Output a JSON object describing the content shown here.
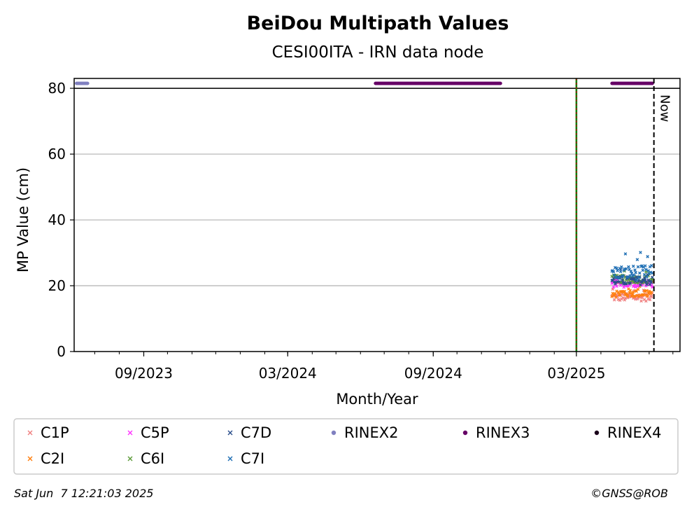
{
  "chart_data": {
    "type": "scatter",
    "title": "BeiDou Multipath Values",
    "subtitle": "CESI00ITA - IRN data node",
    "xlabel": "Month/Year",
    "ylabel": "MP Value (cm)",
    "ylim": [
      0,
      83
    ],
    "xlim": [
      "2023-06-05",
      "2025-07-10"
    ],
    "x_ticks": [
      {
        "date": "2023-09-01",
        "label": "09/2023"
      },
      {
        "date": "2024-03-01",
        "label": "03/2024"
      },
      {
        "date": "2024-09-01",
        "label": "09/2024"
      },
      {
        "date": "2025-03-01",
        "label": "03/2025"
      }
    ],
    "y_ticks": [
      0,
      20,
      40,
      60,
      80
    ],
    "grid": "horizontal",
    "now_label": "Now",
    "now_date": "2025-06-07",
    "vline_date": "2025-03-01",
    "series": [
      {
        "name": "C1P",
        "color": "#f08080",
        "marker": "x",
        "x_range": [
          "2025-04-15",
          "2025-06-05"
        ],
        "mean": 16.5,
        "spread": 1.2
      },
      {
        "name": "C2I",
        "color": "#ff7f0e",
        "marker": "x",
        "x_range": [
          "2025-04-15",
          "2025-06-05"
        ],
        "mean": 17.8,
        "spread": 1.3
      },
      {
        "name": "C5P",
        "color": "#ff33ff",
        "marker": "x",
        "x_range": [
          "2025-04-15",
          "2025-06-05"
        ],
        "mean": 20.5,
        "spread": 1.0
      },
      {
        "name": "C6I",
        "color": "#5d9b3a",
        "marker": "x",
        "x_range": [
          "2025-04-15",
          "2025-06-05"
        ],
        "mean": 22.0,
        "spread": 1.2
      },
      {
        "name": "C7D",
        "color": "#2b4f8c",
        "marker": "x",
        "x_range": [
          "2025-04-15",
          "2025-06-05"
        ],
        "mean": 21.5,
        "spread": 1.3
      },
      {
        "name": "C7I",
        "color": "#1f6fb4",
        "marker": "x",
        "x_range": [
          "2025-04-15",
          "2025-06-05"
        ],
        "mean": 24.0,
        "spread": 2.2
      }
    ],
    "rinex_series": [
      {
        "name": "RINEX2",
        "color": "#8080c0",
        "value": 81.5,
        "ranges": [
          [
            "2023-06-08",
            "2023-06-22"
          ]
        ]
      },
      {
        "name": "RINEX3",
        "color": "#660066",
        "value": 81.5,
        "ranges": [
          [
            "2024-06-20",
            "2024-11-25"
          ],
          [
            "2025-04-15",
            "2025-06-05"
          ]
        ]
      },
      {
        "name": "RINEX4",
        "color": "#1a001a",
        "value": 81.5,
        "ranges": []
      }
    ],
    "legend_order": [
      "C1P",
      "C5P",
      "C7D",
      "RINEX2",
      "RINEX3",
      "RINEX4",
      "C2I",
      "C6I",
      "C7I"
    ],
    "legend_placement": "bottom",
    "colors": {
      "now_line": "#000000",
      "vline_outer": "#008000",
      "vline_inner": "#cc0000",
      "grid": "#b0b0b0",
      "legend_border": "#cccccc"
    }
  },
  "footer": {
    "timestamp": "Sat Jun  7 12:21:03 2025",
    "credit": "©GNSS@ROB"
  }
}
